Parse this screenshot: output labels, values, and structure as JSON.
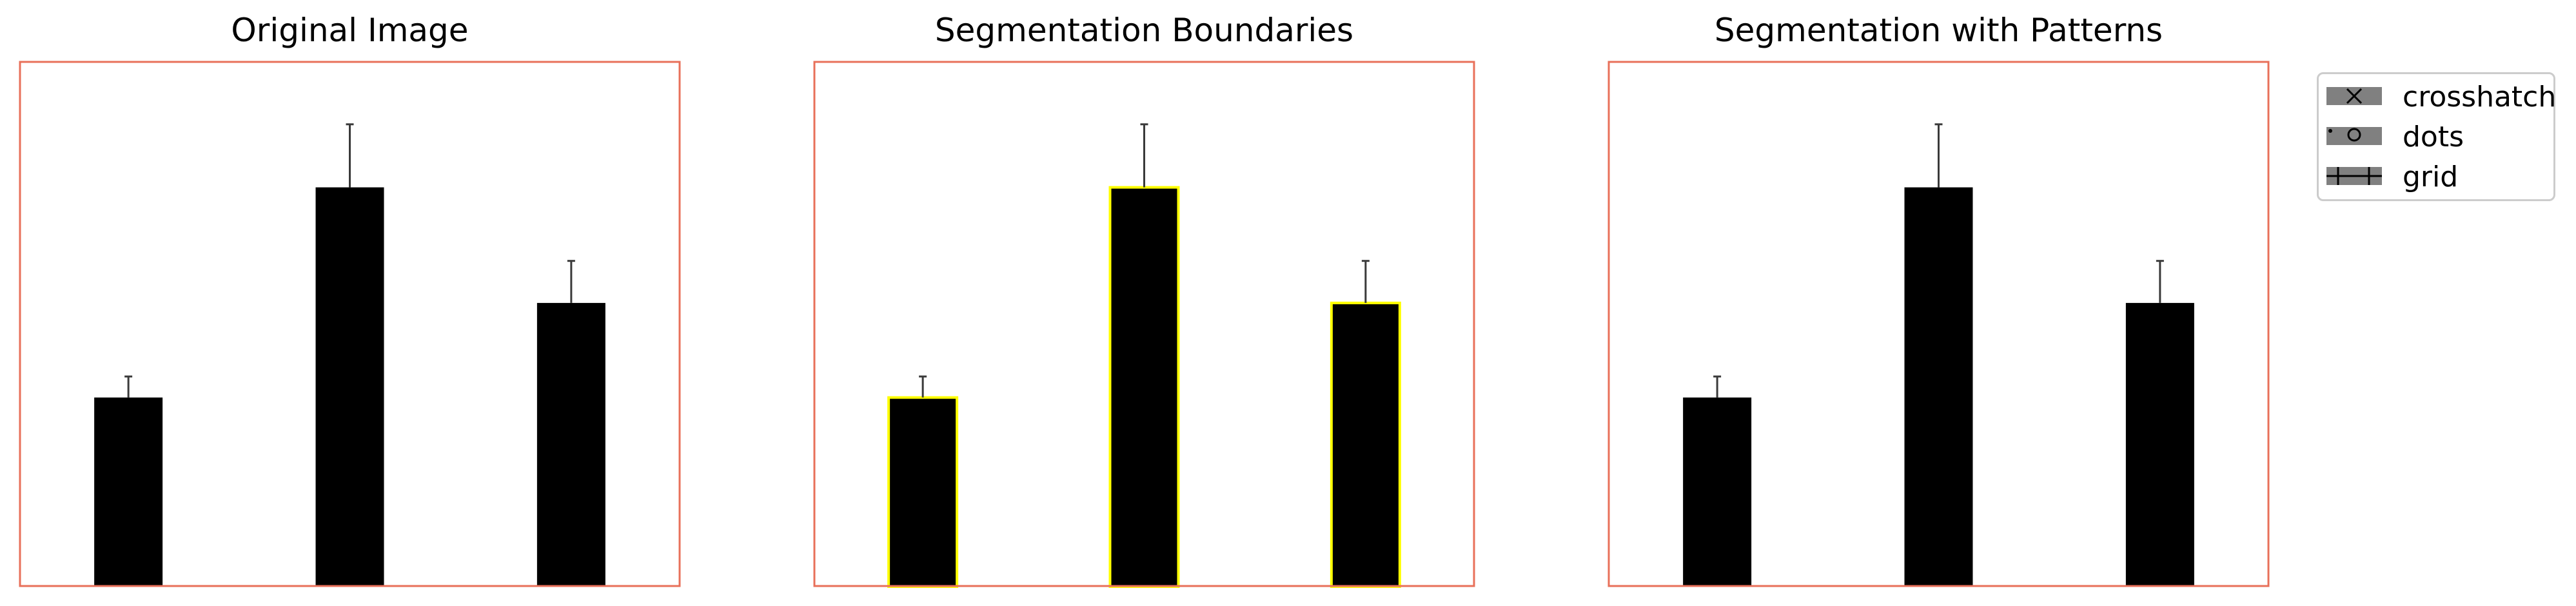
{
  "chart_data": [
    {
      "type": "bar",
      "title": "Original Image",
      "categories": [
        "",
        "",
        ""
      ],
      "values": [
        0.36,
        0.76,
        0.54
      ],
      "errors": [
        0.04,
        0.12,
        0.08
      ],
      "ylim": [
        0,
        1
      ],
      "bar_color": "#000000",
      "bar_edge": "none",
      "frame_color": "#e8705a",
      "axes": "off"
    },
    {
      "type": "bar",
      "title": "Segmentation Boundaries",
      "categories": [
        "",
        "",
        ""
      ],
      "values": [
        0.36,
        0.76,
        0.54
      ],
      "errors": [
        0.04,
        0.12,
        0.08
      ],
      "ylim": [
        0,
        1
      ],
      "bar_color": "#000000",
      "bar_edge": "#ffff00",
      "frame_color": "#e8705a",
      "axes": "off"
    },
    {
      "type": "bar",
      "title": "Segmentation with Patterns",
      "categories": [
        "",
        "",
        ""
      ],
      "values": [
        0.36,
        0.76,
        0.54
      ],
      "errors": [
        0.04,
        0.12,
        0.08
      ],
      "ylim": [
        0,
        1
      ],
      "bar_color": "#000000",
      "bar_edge": "none",
      "frame_color": "#e8705a",
      "axes": "off",
      "legend": {
        "placement": "outside-right",
        "entries": [
          {
            "label": "crosshatch",
            "pattern": "crosshatch",
            "color": "#808080"
          },
          {
            "label": "dots",
            "pattern": "dots",
            "color": "#808080"
          },
          {
            "label": "grid",
            "pattern": "grid",
            "color": "#808080"
          }
        ]
      }
    }
  ]
}
